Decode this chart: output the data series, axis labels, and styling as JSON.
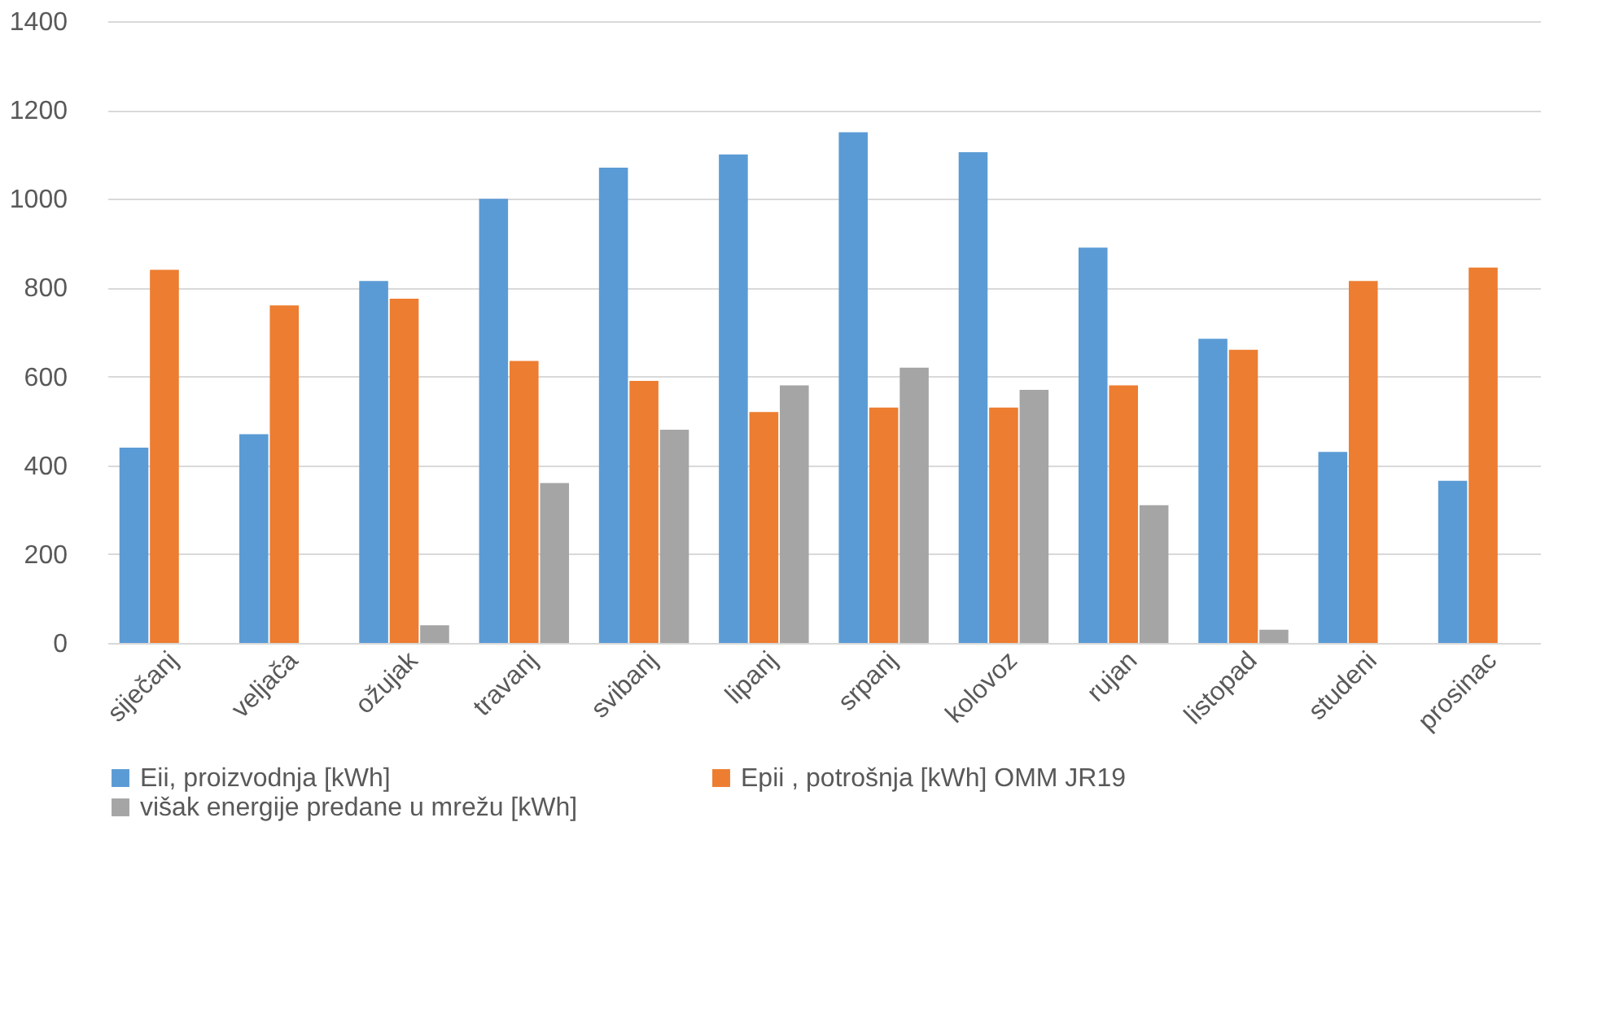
{
  "chart_data": {
    "type": "bar",
    "categories": [
      "siječanj",
      "veljača",
      "ožujak",
      "travanj",
      "svibanj",
      "lipanj",
      "srpanj",
      "kolovoz",
      "rujan",
      "listopad",
      "studeni",
      "prosinac"
    ],
    "series": [
      {
        "name": "Eii,  proizvodnja [kWh]",
        "color": "#5b9bd5",
        "values": [
          440,
          470,
          815,
          1000,
          1070,
          1100,
          1150,
          1105,
          890,
          685,
          430,
          365
        ]
      },
      {
        "name": "Epii , potrošnja [kWh]  OMM JR19",
        "color": "#ed7d31",
        "values": [
          840,
          760,
          775,
          635,
          590,
          520,
          530,
          530,
          580,
          660,
          815,
          845
        ]
      },
      {
        "name": "višak energije predane u mrežu [kWh]",
        "color": "#a5a5a5",
        "values": [
          null,
          null,
          40,
          360,
          480,
          580,
          620,
          570,
          310,
          30,
          null,
          null
        ]
      }
    ],
    "ylim": [
      0,
      1400
    ],
    "yticks": [
      0,
      200,
      400,
      600,
      800,
      1000,
      1200,
      1400
    ],
    "grid": "y",
    "legend": "bottom"
  }
}
